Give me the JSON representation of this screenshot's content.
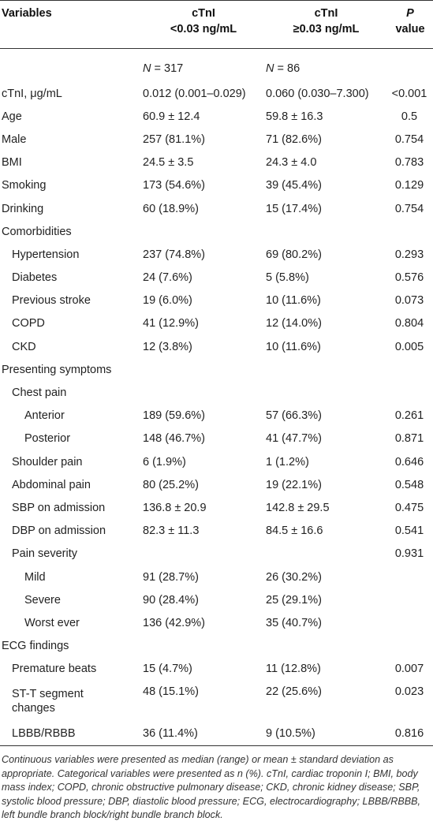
{
  "table": {
    "headers": {
      "variables": "Variables",
      "group1_line1": "cTnI",
      "group1_line2": "<0.03 ng/mL",
      "group2_line1": "cTnI",
      "group2_line2": "≥0.03 ng/mL",
      "p_line1": "P",
      "p_line2": "value"
    },
    "n_row": {
      "g1_n": "N",
      "g1_val": " = 317",
      "g2_n": "N",
      "g2_val": " = 86"
    },
    "rows": [
      {
        "label": "cTnI, μg/mL",
        "g1": "0.012 (0.001–0.029)",
        "g2": "0.060 (0.030–7.300)",
        "p": "<0.001",
        "indent": 0
      },
      {
        "label": "Age",
        "g1": "60.9 ± 12.4",
        "g2": "59.8 ± 16.3",
        "p": "0.5",
        "indent": 0
      },
      {
        "label": "Male",
        "g1": "257 (81.1%)",
        "g2": "71 (82.6%)",
        "p": "0.754",
        "indent": 0
      },
      {
        "label": "BMI",
        "g1": "24.5 ± 3.5",
        "g2": "24.3 ± 4.0",
        "p": "0.783",
        "indent": 0
      },
      {
        "label": "Smoking",
        "g1": "173 (54.6%)",
        "g2": "39 (45.4%)",
        "p": "0.129",
        "indent": 0
      },
      {
        "label": "Drinking",
        "g1": "60 (18.9%)",
        "g2": "15 (17.4%)",
        "p": "0.754",
        "indent": 0
      },
      {
        "label": "Comorbidities",
        "g1": "",
        "g2": "",
        "p": "",
        "indent": 0
      },
      {
        "label": "Hypertension",
        "g1": "237 (74.8%)",
        "g2": "69 (80.2%)",
        "p": "0.293",
        "indent": 1
      },
      {
        "label": "Diabetes",
        "g1": "24 (7.6%)",
        "g2": "5 (5.8%)",
        "p": "0.576",
        "indent": 1
      },
      {
        "label": "Previous stroke",
        "g1": "19 (6.0%)",
        "g2": "10 (11.6%)",
        "p": "0.073",
        "indent": 1
      },
      {
        "label": "COPD",
        "g1": "41 (12.9%)",
        "g2": "12 (14.0%)",
        "p": "0.804",
        "indent": 1
      },
      {
        "label": "CKD",
        "g1": "12 (3.8%)",
        "g2": "10 (11.6%)",
        "p": "0.005",
        "indent": 1
      },
      {
        "label": "Presenting symptoms",
        "g1": "",
        "g2": "",
        "p": "",
        "indent": 0
      },
      {
        "label": "Chest pain",
        "g1": "",
        "g2": "",
        "p": "",
        "indent": 1
      },
      {
        "label": "Anterior",
        "g1": "189 (59.6%)",
        "g2": "57 (66.3%)",
        "p": "0.261",
        "indent": 2
      },
      {
        "label": "Posterior",
        "g1": "148 (46.7%)",
        "g2": "41 (47.7%)",
        "p": "0.871",
        "indent": 2
      },
      {
        "label": "Shoulder pain",
        "g1": "6 (1.9%)",
        "g2": "1 (1.2%)",
        "p": "0.646",
        "indent": 1
      },
      {
        "label": "Abdominal pain",
        "g1": "80 (25.2%)",
        "g2": "19 (22.1%)",
        "p": "0.548",
        "indent": 1
      },
      {
        "label": "SBP on admission",
        "g1": "136.8 ± 20.9",
        "g2": "142.8 ± 29.5",
        "p": "0.475",
        "indent": 1
      },
      {
        "label": "DBP on admission",
        "g1": "82.3 ± 11.3",
        "g2": "84.5 ± 16.6",
        "p": "0.541",
        "indent": 1
      },
      {
        "label": "Pain severity",
        "g1": "",
        "g2": "",
        "p": "0.931",
        "indent": 1
      },
      {
        "label": "Mild",
        "g1": "91 (28.7%)",
        "g2": "26 (30.2%)",
        "p": "",
        "indent": 2
      },
      {
        "label": "Severe",
        "g1": "90 (28.4%)",
        "g2": "25 (29.1%)",
        "p": "",
        "indent": 2
      },
      {
        "label": "Worst ever",
        "g1": "136 (42.9%)",
        "g2": "35 (40.7%)",
        "p": "",
        "indent": 2
      },
      {
        "label": "ECG findings",
        "g1": "",
        "g2": "",
        "p": "",
        "indent": 0
      },
      {
        "label": "Premature beats",
        "g1": "15 (4.7%)",
        "g2": "11 (12.8%)",
        "p": "0.007",
        "indent": 1
      },
      {
        "label_line1": "ST-T segment",
        "label_line2": "changes",
        "g1": "48 (15.1%)",
        "g2": "22 (25.6%)",
        "p": "0.023",
        "indent": 1,
        "tall": true
      },
      {
        "label": "LBBB/RBBB",
        "g1": "36 (11.4%)",
        "g2": "9 (10.5%)",
        "p": "0.816",
        "indent": 1
      }
    ]
  },
  "footnote": "Continuous variables were presented as median (range) or mean ± standard deviation as appropriate. Categorical variables were presented as n (%). cTnI, cardiac troponin I; BMI, body mass index; COPD, chronic obstructive pulmonary disease; CKD, chronic kidney disease; SBP, systolic blood pressure; DBP, diastolic blood pressure; ECG, electrocardiography; LBBB/RBBB, left bundle branch block/right bundle branch block."
}
